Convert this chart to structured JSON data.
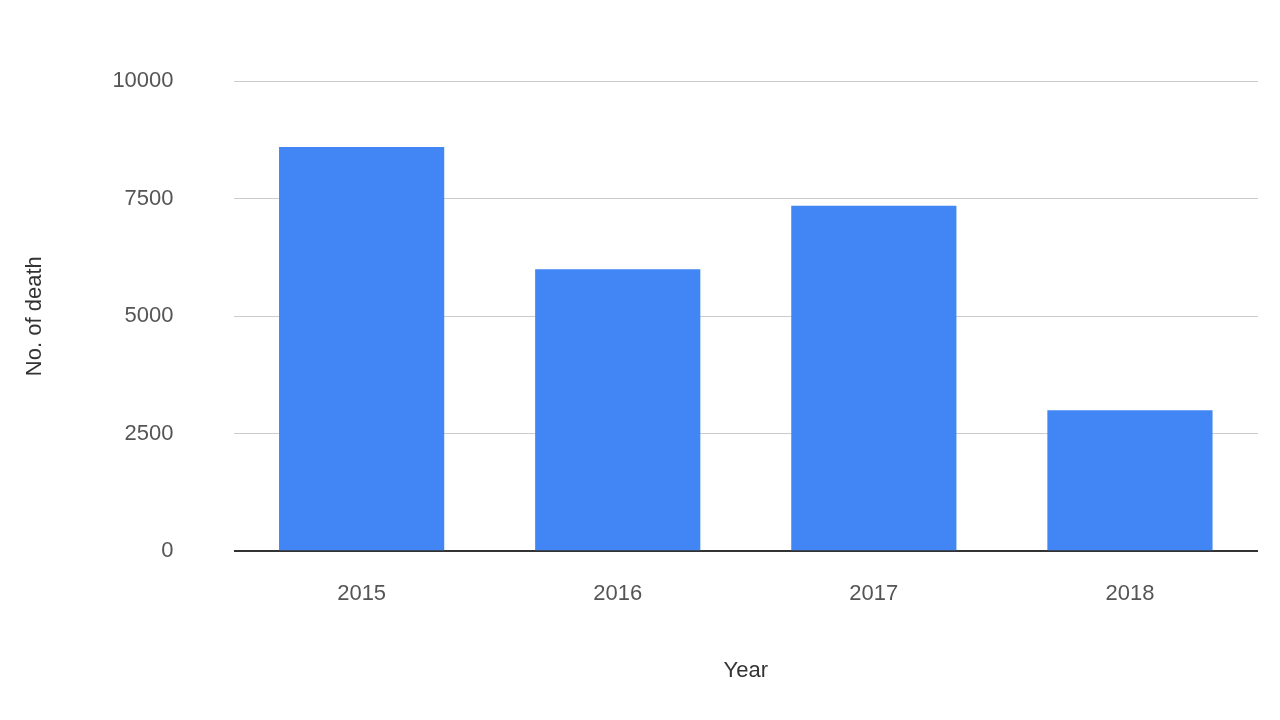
{
  "chart_data": {
    "type": "bar",
    "xlabel": "Year",
    "ylabel": "No. of death",
    "categories": [
      "2015",
      "2016",
      "2017",
      "2018"
    ],
    "values": [
      8600,
      6000,
      7350,
      3000
    ],
    "color": "#4285f4",
    "ylim": [
      0,
      10000
    ],
    "yticks": [
      0,
      2500,
      5000,
      7500,
      10000
    ],
    "grid": "y",
    "legend": false
  }
}
